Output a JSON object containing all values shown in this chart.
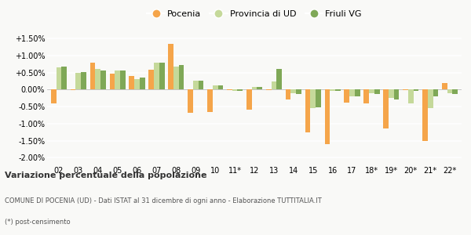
{
  "categories": [
    "02",
    "03",
    "04",
    "05",
    "06",
    "07",
    "08",
    "09",
    "10",
    "11*",
    "12",
    "13",
    "14",
    "15",
    "16",
    "17",
    "18*",
    "19*",
    "20*",
    "21*",
    "22*"
  ],
  "pocenia": [
    -0.4,
    -0.02,
    0.78,
    0.47,
    0.4,
    0.58,
    1.33,
    -0.68,
    -0.65,
    -0.02,
    -0.58,
    -0.02,
    -0.3,
    -1.25,
    -1.6,
    -0.38,
    -0.4,
    -1.15,
    -0.02,
    -1.5,
    0.2
  ],
  "provincia_ud": [
    0.65,
    0.5,
    0.6,
    0.55,
    0.3,
    0.8,
    0.68,
    0.26,
    0.12,
    -0.04,
    0.08,
    0.23,
    -0.1,
    -0.55,
    -0.05,
    -0.2,
    -0.1,
    -0.25,
    -0.4,
    -0.55,
    -0.1
  ],
  "friuli_vg": [
    0.68,
    0.52,
    0.56,
    0.56,
    0.35,
    0.8,
    0.72,
    0.27,
    0.12,
    -0.05,
    0.07,
    0.6,
    -0.12,
    -0.52,
    -0.05,
    -0.2,
    -0.12,
    -0.3,
    -0.05,
    -0.2,
    -0.12
  ],
  "color_pocenia": "#f5a54a",
  "color_provincia": "#c5d99a",
  "color_friuli": "#7fa857",
  "title": "Variazione percentuale della popolazione",
  "subtitle": "COMUNE DI POCENIA (UD) - Dati ISTAT al 31 dicembre di ogni anno - Elaborazione TUTTITALIA.IT",
  "footnote": "(*) post-censimento",
  "ylim": [
    -2.2,
    1.8
  ],
  "yticks": [
    -2.0,
    -1.5,
    -1.0,
    -0.5,
    0.0,
    0.5,
    1.0,
    1.5
  ],
  "background_color": "#f9f9f7"
}
